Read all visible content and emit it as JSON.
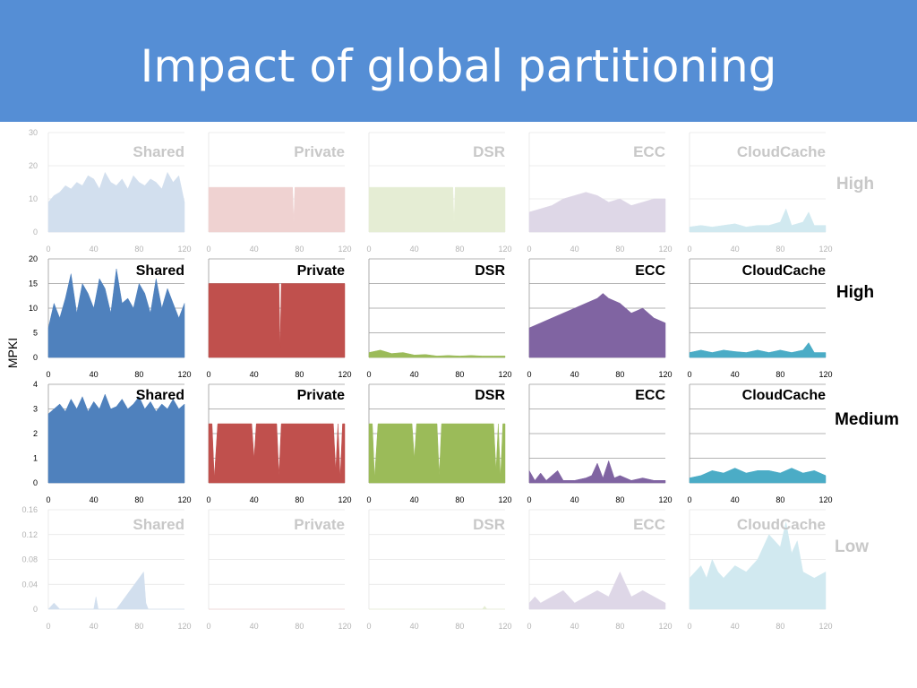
{
  "slide_title": "Impact of global partitioning",
  "y_axis_label": "MPKI",
  "colors": {
    "title_bar": "#558ed5",
    "shared": "#4f81bd",
    "private": "#c0504d",
    "dsr": "#9bbb59",
    "ecc": "#8064a2",
    "cloudcache": "#4bacc6"
  },
  "chart_data": [
    {
      "type": "area",
      "row_label": "High",
      "faded": true,
      "yticks": [
        0,
        10,
        20,
        30
      ],
      "ylim": [
        0,
        30
      ],
      "xticks": [
        0,
        40,
        80,
        120
      ],
      "xlim": [
        0,
        120
      ],
      "panels": [
        {
          "title": "Shared",
          "color": "shared",
          "x": [
            0,
            5,
            10,
            15,
            20,
            25,
            30,
            35,
            40,
            45,
            50,
            55,
            60,
            65,
            70,
            75,
            80,
            85,
            90,
            95,
            100,
            105,
            110,
            115,
            120
          ],
          "y": [
            9,
            11,
            12,
            14,
            13,
            15,
            14,
            17,
            16,
            13,
            18,
            15,
            14,
            16,
            13,
            17,
            15,
            14,
            16,
            15,
            13,
            18,
            15,
            17,
            9
          ]
        },
        {
          "title": "Private",
          "color": "private",
          "x": [
            0,
            10,
            20,
            30,
            40,
            50,
            60,
            70,
            74,
            75,
            76,
            80,
            90,
            100,
            110,
            120
          ],
          "y": [
            13.5,
            13.5,
            13.5,
            13.5,
            13.5,
            13.5,
            13.5,
            13.5,
            13.5,
            3,
            13.5,
            13.5,
            13.5,
            13.5,
            13.5,
            13.5
          ]
        },
        {
          "title": "DSR",
          "color": "dsr",
          "x": [
            0,
            10,
            20,
            30,
            40,
            50,
            60,
            70,
            74,
            75,
            76,
            80,
            90,
            100,
            110,
            120
          ],
          "y": [
            13.5,
            13.5,
            13.5,
            13.5,
            13.5,
            13.5,
            13.5,
            13.5,
            13.5,
            3,
            13.5,
            13.5,
            13.5,
            13.5,
            13.5,
            13.5
          ]
        },
        {
          "title": "ECC",
          "color": "ecc",
          "x": [
            0,
            10,
            20,
            30,
            40,
            50,
            60,
            70,
            80,
            90,
            100,
            110,
            120
          ],
          "y": [
            6,
            7,
            8,
            10,
            11,
            12,
            11,
            9,
            10,
            8,
            9,
            10,
            10
          ]
        },
        {
          "title": "CloudCache",
          "color": "cloudcache",
          "x": [
            0,
            10,
            20,
            30,
            40,
            50,
            60,
            70,
            80,
            85,
            90,
            100,
            105,
            110,
            120
          ],
          "y": [
            1.5,
            2,
            1.5,
            2,
            2.5,
            1.5,
            2,
            2,
            3,
            7,
            2,
            3,
            6,
            2,
            2
          ]
        }
      ]
    },
    {
      "type": "area",
      "row_label": "High",
      "faded": false,
      "yticks": [
        0,
        5,
        10,
        15,
        20
      ],
      "ylim": [
        0,
        20
      ],
      "xticks": [
        0,
        40,
        80,
        120
      ],
      "xlim": [
        0,
        120
      ],
      "panels": [
        {
          "title": "Shared",
          "color": "shared",
          "x": [
            0,
            5,
            10,
            15,
            20,
            25,
            30,
            35,
            40,
            45,
            50,
            55,
            60,
            65,
            70,
            75,
            80,
            85,
            90,
            95,
            100,
            105,
            110,
            115,
            120
          ],
          "y": [
            6,
            11,
            8,
            12,
            17,
            9,
            15,
            13,
            10,
            16,
            14,
            9,
            18,
            11,
            12,
            10,
            15,
            13,
            9,
            16,
            10,
            14,
            11,
            8,
            11
          ]
        },
        {
          "title": "Private",
          "color": "private",
          "x": [
            0,
            10,
            20,
            30,
            40,
            50,
            60,
            62,
            63,
            64,
            70,
            80,
            90,
            100,
            110,
            120
          ],
          "y": [
            15,
            15,
            15,
            15,
            15,
            15,
            15,
            15,
            2,
            15,
            15,
            15,
            15,
            15,
            15,
            15
          ]
        },
        {
          "title": "DSR",
          "color": "dsr",
          "x": [
            0,
            10,
            20,
            30,
            40,
            50,
            60,
            70,
            80,
            90,
            100,
            110,
            120
          ],
          "y": [
            1,
            1.5,
            0.8,
            1,
            0.5,
            0.6,
            0.3,
            0.4,
            0.3,
            0.4,
            0.3,
            0.3,
            0.3
          ]
        },
        {
          "title": "ECC",
          "color": "ecc",
          "x": [
            0,
            10,
            20,
            30,
            40,
            50,
            60,
            65,
            70,
            80,
            90,
            100,
            110,
            120
          ],
          "y": [
            6,
            7,
            8,
            9,
            10,
            11,
            12,
            13,
            12,
            11,
            9,
            10,
            8,
            7
          ]
        },
        {
          "title": "CloudCache",
          "color": "cloudcache",
          "x": [
            0,
            10,
            20,
            30,
            40,
            50,
            60,
            70,
            80,
            90,
            100,
            105,
            110,
            120
          ],
          "y": [
            1,
            1.5,
            1,
            1.5,
            1.2,
            1,
            1.5,
            1,
            1.5,
            1,
            1.5,
            3,
            1,
            1
          ]
        }
      ]
    },
    {
      "type": "area",
      "row_label": "Medium",
      "faded": false,
      "yticks": [
        0,
        1,
        2,
        3,
        4
      ],
      "ylim": [
        0,
        4
      ],
      "xticks": [
        0,
        40,
        80,
        120
      ],
      "xlim": [
        0,
        120
      ],
      "panels": [
        {
          "title": "Shared",
          "color": "shared",
          "x": [
            0,
            5,
            10,
            15,
            20,
            25,
            30,
            35,
            40,
            45,
            50,
            55,
            60,
            65,
            70,
            75,
            80,
            85,
            90,
            95,
            100,
            105,
            110,
            115,
            120
          ],
          "y": [
            2.8,
            3,
            3.2,
            2.9,
            3.4,
            3,
            3.5,
            2.9,
            3.3,
            3,
            3.6,
            3,
            3.1,
            3.4,
            3,
            3.2,
            3.5,
            3,
            3.3,
            2.9,
            3.2,
            3,
            3.4,
            3,
            3.2
          ]
        },
        {
          "title": "Private",
          "color": "private",
          "x": [
            0,
            3,
            5,
            8,
            10,
            20,
            30,
            38,
            40,
            42,
            50,
            60,
            62,
            64,
            66,
            70,
            80,
            90,
            100,
            110,
            112,
            114,
            116,
            118,
            120
          ],
          "y": [
            2.4,
            2.4,
            0.2,
            2.4,
            2.4,
            2.4,
            2.4,
            2.4,
            1,
            2.4,
            2.4,
            2.4,
            0.3,
            2.4,
            2.4,
            2.4,
            2.4,
            2.4,
            2.4,
            2.4,
            0.5,
            2.4,
            0.2,
            2.4,
            2.4
          ]
        },
        {
          "title": "DSR",
          "color": "dsr",
          "x": [
            0,
            3,
            5,
            8,
            10,
            20,
            30,
            38,
            40,
            42,
            50,
            60,
            62,
            64,
            66,
            70,
            80,
            90,
            100,
            110,
            112,
            114,
            116,
            118,
            120
          ],
          "y": [
            2.4,
            2.4,
            0.2,
            2.4,
            2.4,
            2.4,
            2.4,
            2.4,
            1,
            2.4,
            2.4,
            2.4,
            0.3,
            2.4,
            2.4,
            2.4,
            2.4,
            2.4,
            2.4,
            2.4,
            0.5,
            2.4,
            0.2,
            2.4,
            2.4
          ]
        },
        {
          "title": "ECC",
          "color": "ecc",
          "x": [
            0,
            5,
            10,
            15,
            20,
            25,
            30,
            40,
            50,
            55,
            60,
            65,
            70,
            75,
            80,
            90,
            100,
            110,
            120
          ],
          "y": [
            0.5,
            0.1,
            0.4,
            0.1,
            0.3,
            0.5,
            0.1,
            0.1,
            0.2,
            0.3,
            0.8,
            0.2,
            0.9,
            0.2,
            0.3,
            0.1,
            0.2,
            0.1,
            0.1
          ]
        },
        {
          "title": "CloudCache",
          "color": "cloudcache",
          "x": [
            0,
            10,
            20,
            30,
            40,
            50,
            60,
            70,
            80,
            90,
            100,
            110,
            120
          ],
          "y": [
            0.2,
            0.3,
            0.5,
            0.4,
            0.6,
            0.4,
            0.5,
            0.5,
            0.4,
            0.6,
            0.4,
            0.5,
            0.3
          ]
        }
      ]
    },
    {
      "type": "area",
      "row_label": "Low",
      "faded": true,
      "yticks": [
        0,
        0.04,
        0.08,
        0.12,
        0.16
      ],
      "ylim": [
        0,
        0.16
      ],
      "xticks": [
        0,
        40,
        80,
        120
      ],
      "xlim": [
        0,
        120
      ],
      "panels": [
        {
          "title": "Shared",
          "color": "shared",
          "x": [
            0,
            5,
            10,
            20,
            40,
            42,
            44,
            60,
            84,
            86,
            88,
            100,
            120
          ],
          "y": [
            0,
            0.01,
            0,
            0,
            0,
            0.02,
            0,
            0,
            0.06,
            0.01,
            0,
            0,
            0
          ]
        },
        {
          "title": "Private",
          "color": "private",
          "x": [
            0,
            120
          ],
          "y": [
            0,
            0
          ]
        },
        {
          "title": "DSR",
          "color": "dsr",
          "x": [
            0,
            100,
            102,
            104,
            120
          ],
          "y": [
            0,
            0,
            0.005,
            0,
            0
          ]
        },
        {
          "title": "ECC",
          "color": "ecc",
          "x": [
            0,
            5,
            10,
            20,
            30,
            40,
            50,
            60,
            70,
            80,
            90,
            100,
            110,
            120
          ],
          "y": [
            0.01,
            0.02,
            0.01,
            0.02,
            0.03,
            0.01,
            0.02,
            0.03,
            0.02,
            0.06,
            0.02,
            0.03,
            0.02,
            0.01
          ]
        },
        {
          "title": "CloudCache",
          "color": "cloudcache",
          "x": [
            0,
            5,
            10,
            15,
            20,
            25,
            30,
            40,
            50,
            60,
            70,
            80,
            85,
            90,
            95,
            100,
            110,
            120
          ],
          "y": [
            0.05,
            0.06,
            0.07,
            0.05,
            0.08,
            0.06,
            0.05,
            0.07,
            0.06,
            0.08,
            0.12,
            0.1,
            0.14,
            0.09,
            0.11,
            0.06,
            0.05,
            0.06
          ]
        }
      ]
    }
  ]
}
